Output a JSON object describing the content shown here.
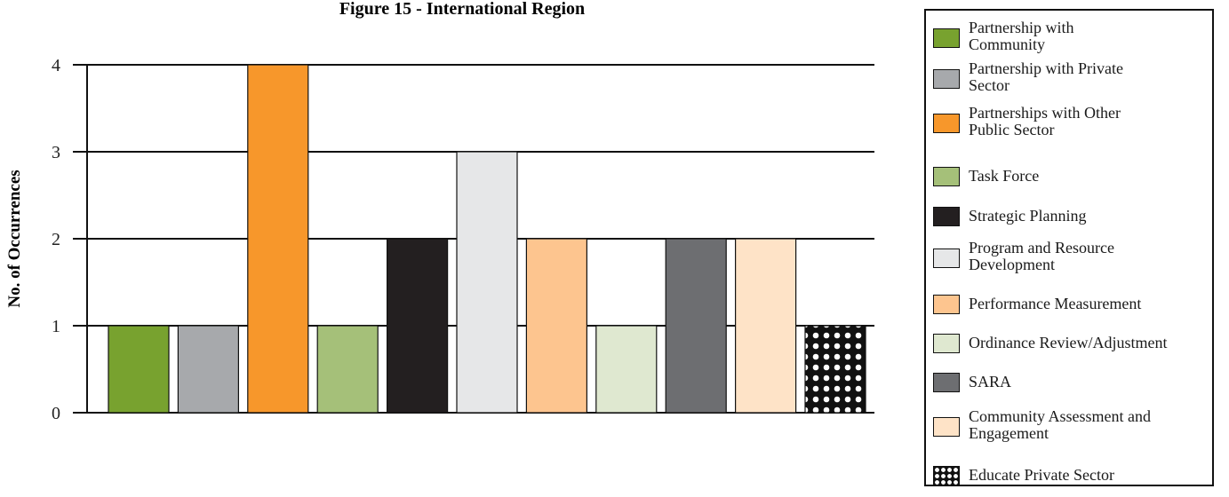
{
  "chart_data": {
    "type": "bar",
    "title": "Figure 15 - International Region",
    "xlabel": "",
    "ylabel": "No. of Occurrences",
    "ylim": [
      0,
      4
    ],
    "yticks": [
      0,
      1,
      2,
      3,
      4
    ],
    "grid": true,
    "legend_position": "right",
    "categories": [
      "Partnership with Community",
      "Partnership with Private Sector",
      "Partnerships with Other Public Sector",
      "Task Force",
      "Strategic Planning",
      "Program and Resource Development",
      "Performance Measurement",
      "Ordinance Review/Adjustment",
      "SARA",
      "Community Assessment and Engagement",
      "Educate Private Sector"
    ],
    "values": [
      1,
      1,
      4,
      1,
      2,
      3,
      2,
      1,
      2,
      2,
      1
    ],
    "colors": [
      "#78a22f",
      "#a7a9ac",
      "#f7972b",
      "#a5c079",
      "#231f20",
      "#e6e7e8",
      "#fdc58f",
      "#dfe8d0",
      "#6d6e71",
      "#fee3c7",
      "pattern-dots"
    ]
  },
  "legend": {
    "items": [
      {
        "label": "Partnership with\nCommunity",
        "color": "#78a22f"
      },
      {
        "label": "Partnership with Private\nSector",
        "color": "#a7a9ac"
      },
      {
        "label": "Partnerships with Other\nPublic Sector",
        "color": "#f7972b"
      },
      {
        "label": "Task Force",
        "color": "#a5c079"
      },
      {
        "label": "Strategic Planning",
        "color": "#231f20"
      },
      {
        "label": "Program and Resource\nDevelopment",
        "color": "#e6e7e8"
      },
      {
        "label": "Performance Measurement",
        "color": "#fdc58f"
      },
      {
        "label": "Ordinance Review/Adjustment",
        "color": "#dfe8d0"
      },
      {
        "label": "SARA",
        "color": "#6d6e71"
      },
      {
        "label": "Community Assessment and\nEngagement",
        "color": "#fee3c7"
      },
      {
        "label": "Educate Private Sector",
        "color": "pattern-dots"
      }
    ]
  }
}
